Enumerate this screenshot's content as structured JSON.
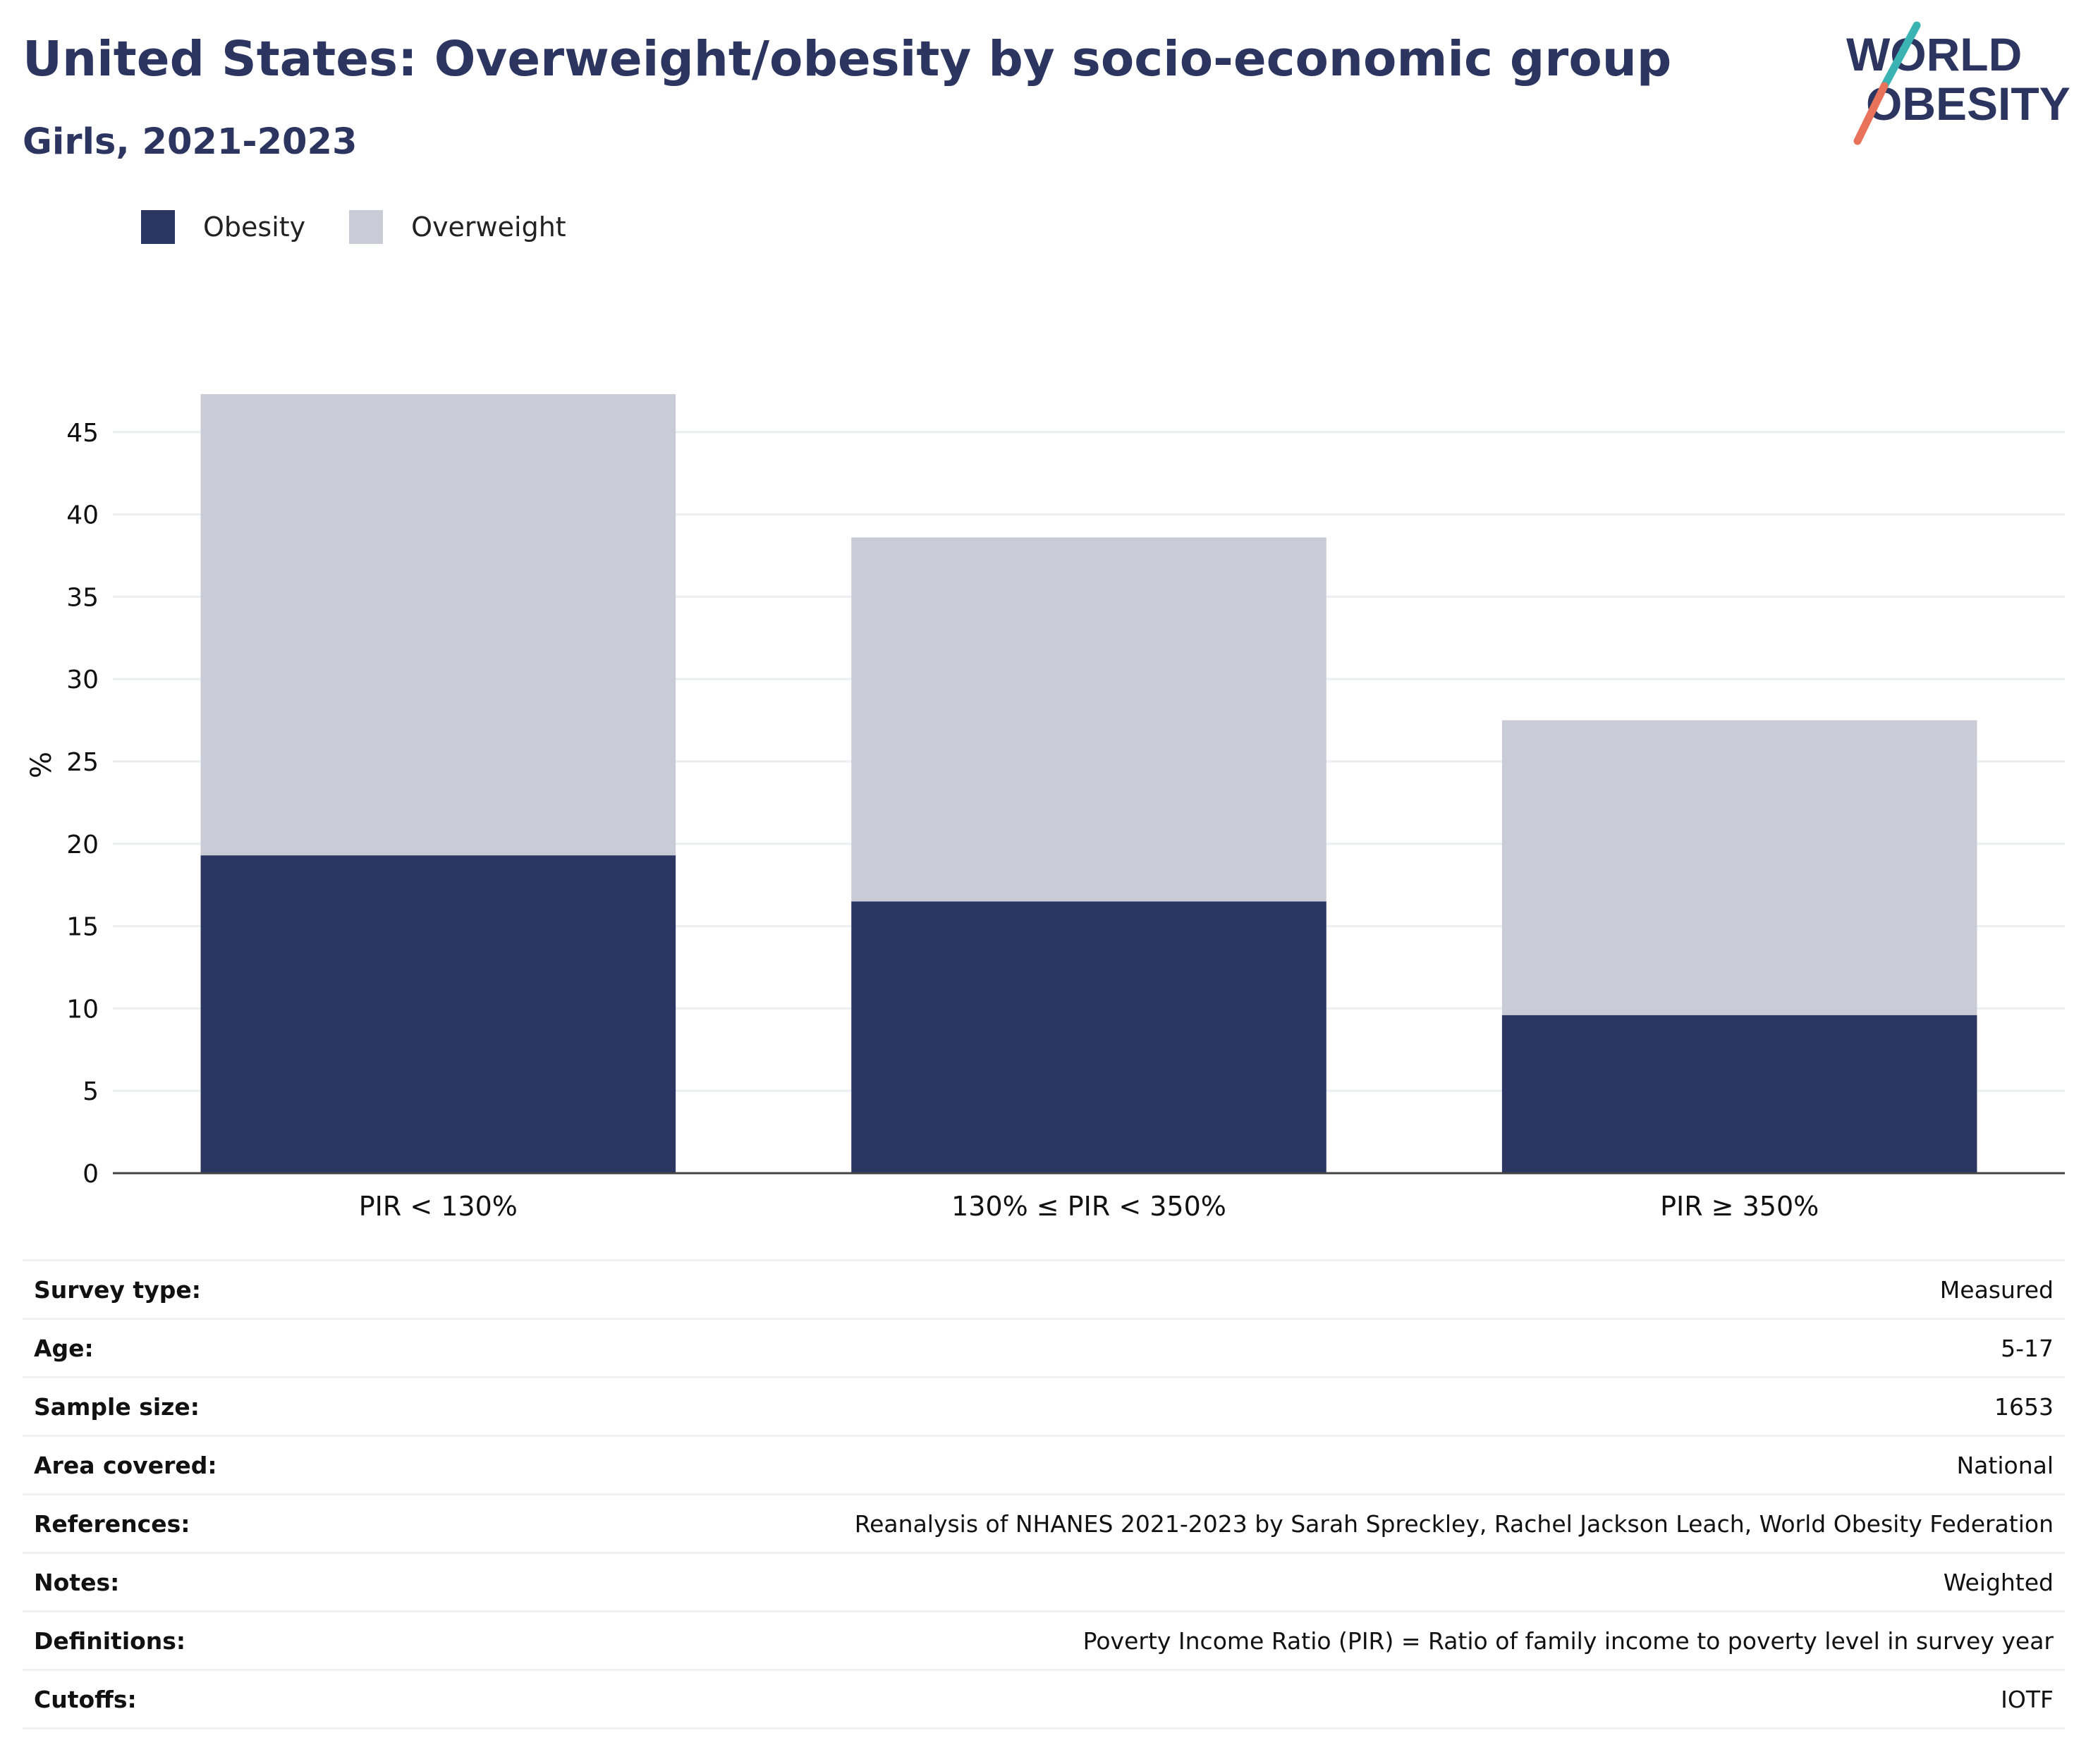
{
  "header": {
    "title": "United States: Overweight/obesity by socio-economic group",
    "subtitle": "Girls, 2021-2023"
  },
  "logo": {
    "line1": "WORLD",
    "line2": "OBESITY"
  },
  "colors": {
    "obesity": "#2b3662",
    "overweight": "#c9cbd7",
    "text": "#2b3560",
    "accent_teal": "#3bb3b3",
    "accent_coral": "#e8735a"
  },
  "chart_data": {
    "type": "bar",
    "stacked": true,
    "categories": [
      "PIR < 130%",
      "130% ≤ PIR < 350%",
      "PIR ≥ 350%"
    ],
    "series": [
      {
        "name": "Obesity",
        "values": [
          19.3,
          16.5,
          9.6
        ]
      },
      {
        "name": "Overweight",
        "values": [
          28.0,
          22.1,
          17.9
        ]
      }
    ],
    "ylabel": "%",
    "yticks": [
      0,
      5,
      10,
      15,
      20,
      25,
      30,
      35,
      40,
      45
    ],
    "ylim": [
      0,
      50
    ],
    "grid": true,
    "legend_position": "top-left"
  },
  "info": [
    {
      "label": "Survey type:",
      "value": "Measured"
    },
    {
      "label": "Age:",
      "value": "5-17"
    },
    {
      "label": "Sample size:",
      "value": "1653"
    },
    {
      "label": "Area covered:",
      "value": "National"
    },
    {
      "label": "References:",
      "value": "Reanalysis of NHANES 2021-2023 by Sarah Spreckley, Rachel Jackson Leach, World Obesity Federation"
    },
    {
      "label": "Notes:",
      "value": "Weighted"
    },
    {
      "label": "Definitions:",
      "value": "Poverty Income Ratio (PIR) = Ratio of family income to poverty level in survey year"
    },
    {
      "label": "Cutoffs:",
      "value": "IOTF"
    }
  ]
}
